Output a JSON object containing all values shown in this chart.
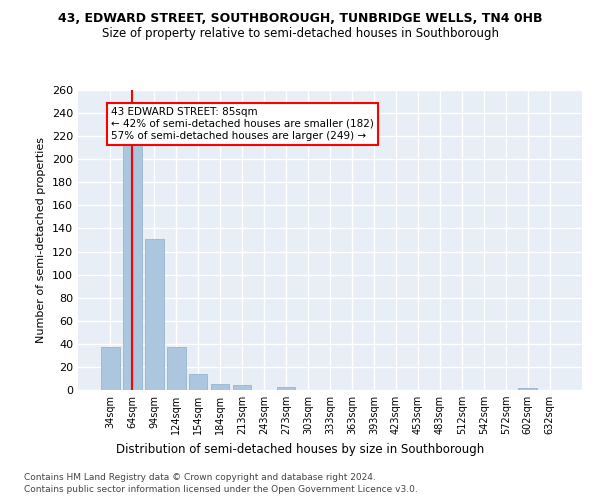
{
  "title": "43, EDWARD STREET, SOUTHBOROUGH, TUNBRIDGE WELLS, TN4 0HB",
  "subtitle": "Size of property relative to semi-detached houses in Southborough",
  "xlabel": "Distribution of semi-detached houses by size in Southborough",
  "ylabel": "Number of semi-detached properties",
  "footer1": "Contains HM Land Registry data © Crown copyright and database right 2024.",
  "footer2": "Contains public sector information licensed under the Open Government Licence v3.0.",
  "categories": [
    "34sqm",
    "64sqm",
    "94sqm",
    "124sqm",
    "154sqm",
    "184sqm",
    "213sqm",
    "243sqm",
    "273sqm",
    "303sqm",
    "333sqm",
    "363sqm",
    "393sqm",
    "423sqm",
    "453sqm",
    "483sqm",
    "512sqm",
    "542sqm",
    "572sqm",
    "602sqm",
    "632sqm"
  ],
  "values": [
    37,
    215,
    131,
    37,
    14,
    5,
    4,
    0,
    3,
    0,
    0,
    0,
    0,
    0,
    0,
    0,
    0,
    0,
    0,
    2,
    0
  ],
  "bar_color": "#adc6e0",
  "bar_edge_color": "#8aaec8",
  "vline_x": 1.0,
  "vline_color": "red",
  "annotation_text": "43 EDWARD STREET: 85sqm\n← 42% of semi-detached houses are smaller (182)\n57% of semi-detached houses are larger (249) →",
  "annotation_box_color": "white",
  "annotation_box_edge": "red",
  "ylim": [
    0,
    260
  ],
  "yticks": [
    0,
    20,
    40,
    60,
    80,
    100,
    120,
    140,
    160,
    180,
    200,
    220,
    240,
    260
  ],
  "bg_color": "#e8eef5",
  "grid_color": "white",
  "title_fontsize": 9,
  "subtitle_fontsize": 8.5,
  "ylabel_fontsize": 8,
  "xlabel_fontsize": 8.5,
  "footer_fontsize": 6.5
}
